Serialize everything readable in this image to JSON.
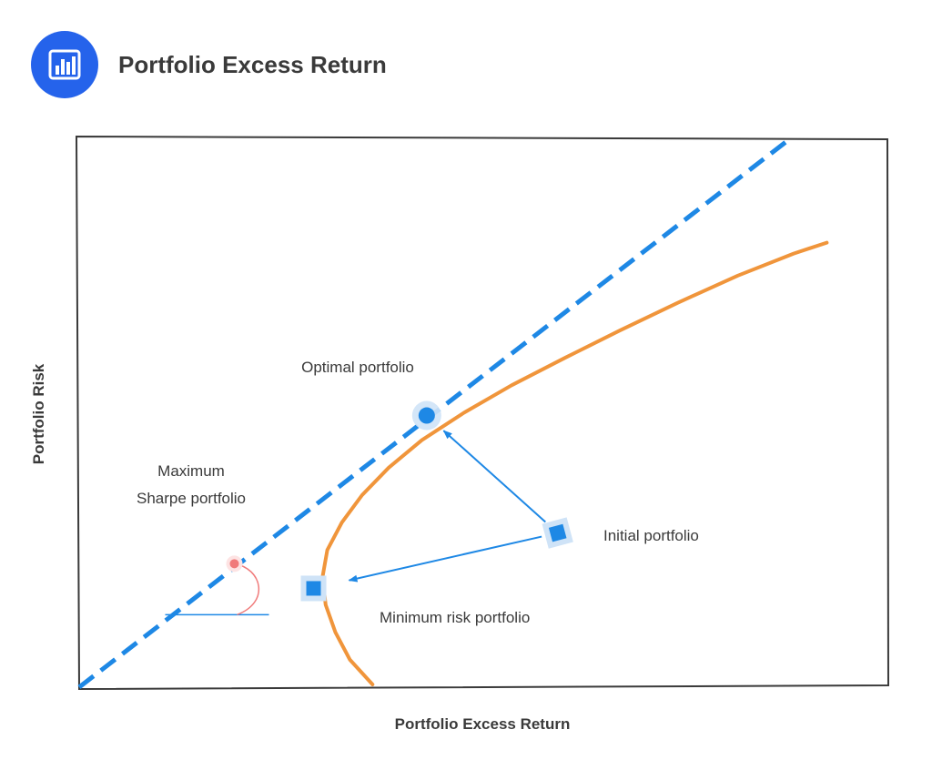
{
  "header": {
    "title": "Portfolio Excess Return",
    "logo_icon": "bar-chart-icon"
  },
  "chart_data": {
    "type": "line",
    "title": "Portfolio Excess Return",
    "xlabel": "Portfolio Excess Return",
    "ylabel": "Portfolio Risk",
    "xlim": [
      0,
      100
    ],
    "ylim": [
      0,
      100
    ],
    "grid": false,
    "colors": {
      "frontier": "#f0953b",
      "capital_line": "#1e88e5",
      "markers": "#1e88e5",
      "marker_halo": "#cfe3f7",
      "sharpe_point": "#f07a7a",
      "frontier_min_point": "#f07a7a",
      "angle_baseline": "#1e88e5",
      "accent": "#2563eb"
    },
    "series": [
      {
        "kind": "frontier-curve",
        "points": [
          [
            36.3,
            0.5
          ],
          [
            33.5,
            5
          ],
          [
            31.7,
            10
          ],
          [
            30.5,
            15
          ],
          [
            30.1,
            20
          ],
          [
            30.7,
            25
          ],
          [
            32.5,
            30
          ],
          [
            35.0,
            35
          ],
          [
            38.3,
            40
          ],
          [
            42.4,
            45
          ],
          [
            47.6,
            50
          ],
          [
            53.5,
            55
          ],
          [
            60.1,
            60
          ],
          [
            66.9,
            65
          ],
          [
            74.0,
            70
          ],
          [
            81.5,
            75
          ],
          [
            88.4,
            79
          ],
          [
            92.5,
            81
          ]
        ]
      },
      {
        "kind": "capital-allocation-line",
        "points": [
          [
            0,
            0
          ],
          [
            87.4,
            99.3
          ]
        ]
      }
    ],
    "points": [
      {
        "label": "Optimal portfolio",
        "x": 43.0,
        "y": 49.5,
        "marker": "circle"
      },
      {
        "label": "Initial portfolio",
        "x": 59.2,
        "y": 28.1,
        "marker": "square"
      },
      {
        "label": "Minimum risk portfolio",
        "x": 29.0,
        "y": 18.0,
        "marker": "square"
      },
      {
        "label": "Maximum Sharpe portfolio",
        "x": 19.2,
        "y": 22.5,
        "marker": "dot"
      }
    ],
    "arrows": [
      {
        "from": "Initial portfolio",
        "to": "Optimal portfolio"
      },
      {
        "from": "Initial portfolio",
        "to": "Minimum risk portfolio"
      }
    ],
    "annotations": {
      "optimal": "Optimal portfolio",
      "initial": "Initial portfolio",
      "minimum_risk": "Minimum risk portfolio",
      "max_sharpe_line1": "Maximum",
      "max_sharpe_line2": "Sharpe portfolio"
    }
  }
}
